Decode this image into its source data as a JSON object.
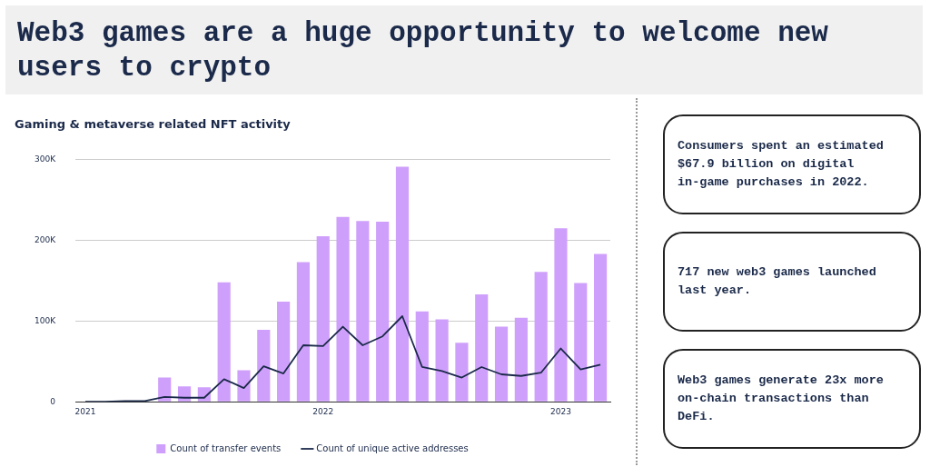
{
  "chart_data": {
    "type": "bar",
    "title": "Web3 games are a huge opportunity to welcome new users to crypto",
    "subtitle": "Gaming & metaverse related NFT activity",
    "categories": [
      "2021",
      null,
      null,
      null,
      null,
      null,
      null,
      null,
      null,
      null,
      null,
      null,
      "2022",
      null,
      null,
      null,
      null,
      null,
      null,
      null,
      null,
      null,
      null,
      null,
      "2023",
      null,
      null
    ],
    "series": [
      {
        "name": "Count of transfer events",
        "color": "#cfa0fb",
        "values": [
          0,
          0,
          null,
          null,
          30000,
          19000,
          18000,
          148000,
          39000,
          89000,
          124000,
          173000,
          205000,
          229000,
          224000,
          223000,
          291000,
          112000,
          102000,
          73000,
          133000,
          93000,
          104000,
          161000,
          215000,
          147000,
          183000
        ]
      },
      {
        "name": "Count of unique active addresses",
        "type": "line",
        "color": "#1b2a4a",
        "values": [
          0,
          0,
          1000,
          1000,
          6000,
          5000,
          5000,
          28000,
          17000,
          44000,
          35000,
          70000,
          69000,
          93000,
          70000,
          81000,
          106000,
          43000,
          38000,
          30000,
          43000,
          34000,
          32000,
          36000,
          66000,
          40000,
          46000
        ]
      }
    ],
    "ylim": [
      0,
      300000
    ],
    "yticks": [
      {
        "value": 0,
        "label": "0"
      },
      {
        "value": 100000,
        "label": "100K"
      },
      {
        "value": 200000,
        "label": "200K"
      },
      {
        "value": 300000,
        "label": "300K"
      }
    ],
    "grid": "y",
    "legend": "bottom",
    "annotations": [
      "Consumers spent an estimated $67.9 billion on digital in-game purchases in 2022.",
      "717 new web3 games launched last year.",
      "Web3 games generate 23x more on-chain transactions than DeFi."
    ]
  }
}
